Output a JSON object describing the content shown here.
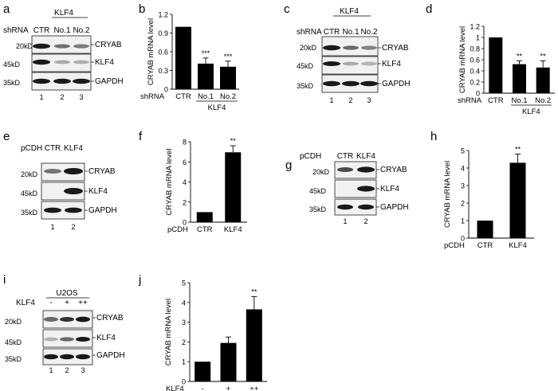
{
  "figure": {
    "panels": {
      "a": {
        "letter": "a",
        "group_header": "KLF4",
        "row_prefix": "shRNA",
        "lanes": [
          "CTR",
          "No.1",
          "No.2"
        ],
        "lane_numbers": [
          "1",
          "2",
          "3"
        ],
        "blots": [
          {
            "marker": "20kD",
            "protein": "CRYAB",
            "intensities": [
              1.0,
              0.45,
              0.4
            ]
          },
          {
            "marker": "45kD",
            "protein": "KLF4",
            "intensities": [
              1.0,
              0.1,
              0.08
            ]
          },
          {
            "marker": "35kD",
            "protein": "GAPDH",
            "intensities": [
              1.0,
              1.0,
              1.0
            ]
          }
        ]
      },
      "c": {
        "letter": "c",
        "group_header": "KLF4",
        "row_prefix": "shRNA",
        "lanes": [
          "CTR",
          "No.1",
          "No.2"
        ],
        "lane_numbers": [
          "1",
          "2",
          "3"
        ],
        "blots": [
          {
            "marker": "20kD",
            "protein": "CRYAB",
            "intensities": [
              1.0,
              0.5,
              0.35
            ]
          },
          {
            "marker": "45kD",
            "protein": "KLF4",
            "intensities": [
              1.0,
              0.1,
              0.05
            ]
          },
          {
            "marker": "35kD",
            "protein": "GAPDH",
            "intensities": [
              1.0,
              1.0,
              1.0
            ]
          }
        ]
      },
      "e": {
        "letter": "e",
        "row_prefix": "pCDH",
        "lanes": [
          "CTR",
          "KLF4"
        ],
        "lane_numbers": [
          "1",
          "2"
        ],
        "blots": [
          {
            "marker": "20kD",
            "protein": "CRYAB",
            "intensities": [
              0.45,
              1.0
            ]
          },
          {
            "marker": "45kD",
            "protein": "KLF4",
            "intensities": [
              0.0,
              1.0
            ]
          },
          {
            "marker": "35kD",
            "protein": "GAPDH",
            "intensities": [
              1.0,
              1.0
            ]
          }
        ]
      },
      "g": {
        "letter": "g",
        "row_prefix": "pCDH",
        "lanes": [
          "CTR",
          "KLF4"
        ],
        "lane_numbers": [
          "1",
          "2"
        ],
        "blots": [
          {
            "marker": "20kD",
            "protein": "CRYAB",
            "intensities": [
              0.7,
              1.0
            ]
          },
          {
            "marker": "45kD",
            "protein": "KLF4",
            "intensities": [
              0.0,
              1.0
            ]
          },
          {
            "marker": "35kD",
            "protein": "GAPDH",
            "intensities": [
              1.0,
              1.0
            ]
          }
        ]
      },
      "i": {
        "letter": "i",
        "group_header": "U2OS",
        "row_prefix": "KLF4",
        "lanes": [
          "-",
          "+",
          "++"
        ],
        "lane_numbers": [
          "1",
          "2",
          "3"
        ],
        "blots": [
          {
            "marker": "20kD",
            "protein": "CRYAB",
            "intensities": [
              0.5,
              0.85,
              1.0
            ]
          },
          {
            "marker": "45kD",
            "protein": "KLF4",
            "intensities": [
              0.05,
              0.5,
              1.0
            ]
          },
          {
            "marker": "35kD",
            "protein": "GAPDH",
            "intensities": [
              1.0,
              1.0,
              1.0
            ]
          }
        ]
      }
    }
  },
  "chart_data": [
    {
      "panel": "b",
      "type": "bar",
      "ylabel": "CRYAB mRNA level",
      "row_prefix": "shRNA",
      "categories": [
        "CTR",
        "No.1",
        "No.2"
      ],
      "values": [
        1.0,
        0.41,
        0.36
      ],
      "errors": [
        0,
        0.09,
        0.09
      ],
      "significance": [
        "",
        "***",
        "***"
      ],
      "group_label": "KLF4",
      "ylim": [
        0,
        1.2
      ],
      "yticks": [
        "0",
        "0.3",
        "0.6",
        "0.9",
        "1.2"
      ]
    },
    {
      "panel": "d",
      "type": "bar",
      "ylabel": "CRYAB mRNA level",
      "row_prefix": "shRNA",
      "categories": [
        "CTR",
        "No.1",
        "No.2"
      ],
      "values": [
        1.0,
        0.52,
        0.46
      ],
      "errors": [
        0,
        0.06,
        0.12
      ],
      "significance": [
        "",
        "**",
        "**"
      ],
      "group_label": "KLF4",
      "ylim": [
        0,
        1.2
      ],
      "yticks": [
        "0",
        "0.2",
        "0.4",
        "0.6",
        "0.8",
        "1",
        "1.2"
      ]
    },
    {
      "panel": "f",
      "type": "bar",
      "ylabel": "CRYAB mRNA level",
      "row_prefix": "pCDH",
      "categories": [
        "CTR",
        "KLF4"
      ],
      "values": [
        1.0,
        6.95
      ],
      "errors": [
        0,
        0.65
      ],
      "significance": [
        "",
        "**"
      ],
      "ylim": [
        0,
        8
      ],
      "yticks": [
        "0",
        "2",
        "4",
        "6",
        "8"
      ]
    },
    {
      "panel": "h",
      "type": "bar",
      "ylabel": "CRYAB mRNA level",
      "row_prefix": "pCDH",
      "categories": [
        "CTR",
        "KLF4"
      ],
      "values": [
        1.0,
        4.3
      ],
      "errors": [
        0,
        0.5
      ],
      "significance": [
        "",
        "**"
      ],
      "ylim": [
        0,
        5
      ],
      "yticks": [
        "0",
        "1",
        "2",
        "3",
        "4",
        "5"
      ]
    },
    {
      "panel": "j",
      "type": "bar",
      "ylabel": "CRYAB mRNA level",
      "row_prefix": "KLF4",
      "categories": [
        "-",
        "+",
        "++"
      ],
      "values": [
        1.0,
        1.95,
        3.65
      ],
      "errors": [
        0,
        0.3,
        0.65
      ],
      "significance": [
        "",
        "",
        "**"
      ],
      "ylim": [
        0,
        5
      ],
      "yticks": [
        "0",
        "1",
        "2",
        "3",
        "4",
        "5"
      ]
    }
  ]
}
